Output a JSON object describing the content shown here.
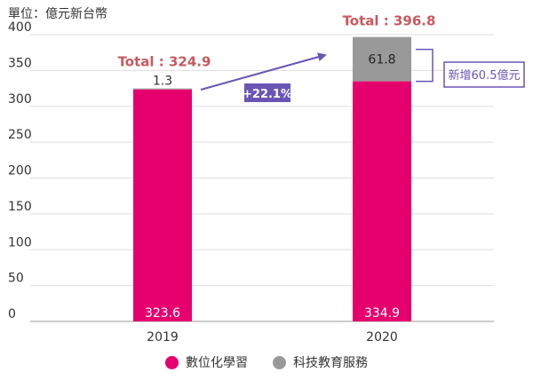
{
  "unit_label": "單位：億元新台幣",
  "chart_data": {
    "type": "bar",
    "stacked": true,
    "categories": [
      "2019",
      "2020"
    ],
    "series": [
      {
        "name": "數位化學習",
        "values": [
          323.6,
          334.9
        ],
        "color": "#e6006e",
        "labels": [
          "323.6",
          "334.9"
        ]
      },
      {
        "name": "科技教育服務",
        "values": [
          1.3,
          61.8
        ],
        "color": "#999999",
        "labels": [
          "1.3",
          "61.8"
        ]
      }
    ],
    "totals": [
      "Total : 324.9",
      "Total : 396.8"
    ],
    "y_ticks": [
      "0",
      "50",
      "100",
      "150",
      "200",
      "250",
      "300",
      "350",
      "400"
    ],
    "ylim": [
      0,
      400
    ],
    "grid": true,
    "legend_position": "bottom",
    "growth_annotation": "+22.1%",
    "increase_annotation": "新增60.5億元",
    "colors": {
      "accent": "#6a55b5",
      "total": "#c9585f"
    }
  }
}
